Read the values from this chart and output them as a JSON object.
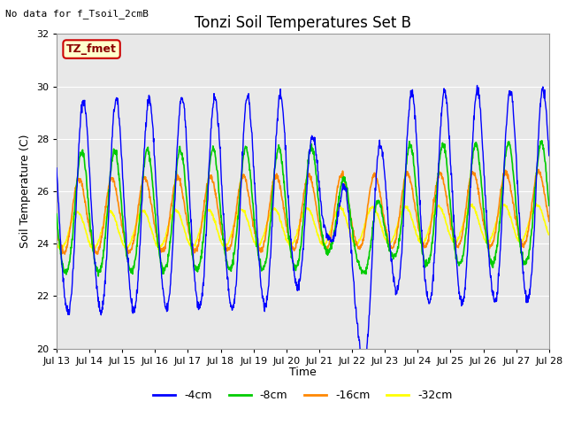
{
  "title": "Tonzi Soil Temperatures Set B",
  "ylabel": "Soil Temperature (C)",
  "xlabel": "Time",
  "no_data_label": "No data for f_Tsoil_2cmB",
  "tz_label": "TZ_fmet",
  "ylim": [
    20,
    32
  ],
  "yticks": [
    20,
    22,
    24,
    26,
    28,
    30,
    32
  ],
  "xtick_labels": [
    "Jul 13",
    "Jul 14",
    "Jul 15",
    "Jul 16",
    "Jul 17",
    "Jul 18",
    "Jul 19",
    "Jul 20",
    "Jul 21",
    "Jul 22",
    "Jul 23",
    "Jul 24",
    "Jul 25",
    "Jul 26",
    "Jul 27",
    "Jul 28"
  ],
  "colors": {
    "-4cm": "#0000ff",
    "-8cm": "#00cc00",
    "-16cm": "#ff8800",
    "-32cm": "#ffff00"
  },
  "legend_labels": [
    "-4cm",
    "-8cm",
    "-16cm",
    "-32cm"
  ],
  "bg_color": "#e8e8e8",
  "title_fontsize": 12,
  "axis_label_fontsize": 9,
  "tick_fontsize": 8,
  "legend_fontsize": 9
}
